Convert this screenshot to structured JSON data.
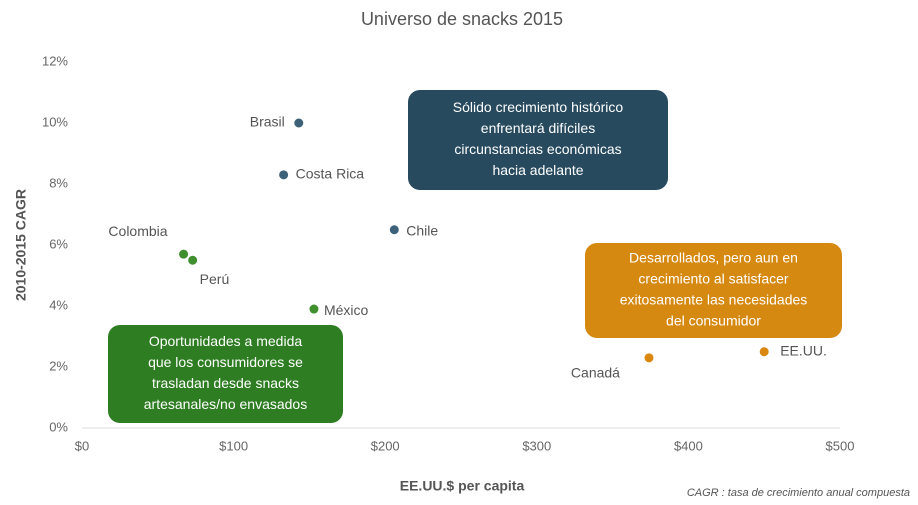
{
  "chart_data": {
    "type": "scatter",
    "title": "Universo de snacks  2015",
    "x_label": "EE.UU.$ per capita",
    "y_label": "2010-2015 CAGR",
    "footnote": "CAGR : tasa de crecimiento anual compuesta",
    "xlim": [
      0,
      500
    ],
    "ylim": [
      0,
      12
    ],
    "xticks": [
      {
        "value": 0,
        "label": "$0"
      },
      {
        "value": 100,
        "label": "$100"
      },
      {
        "value": 200,
        "label": "$200"
      },
      {
        "value": 300,
        "label": "$300"
      },
      {
        "value": 400,
        "label": "$400"
      },
      {
        "value": 500,
        "label": "$500"
      }
    ],
    "yticks": [
      {
        "value": 0,
        "label": "0%"
      },
      {
        "value": 2,
        "label": "2%"
      },
      {
        "value": 4,
        "label": "4%"
      },
      {
        "value": 6,
        "label": "6%"
      },
      {
        "value": 8,
        "label": "8%"
      },
      {
        "value": 10,
        "label": "10%"
      },
      {
        "value": 12,
        "label": "12%"
      }
    ],
    "points": [
      {
        "label": "Brasil",
        "x": 143,
        "y": 10.0,
        "color": "#3d6178"
      },
      {
        "label": "Costa Rica",
        "x": 133,
        "y": 8.3,
        "color": "#3d6178"
      },
      {
        "label": "Chile",
        "x": 206,
        "y": 6.5,
        "color": "#3d6178"
      },
      {
        "label": "Colombia",
        "x": 67,
        "y": 5.7,
        "color": "#3f8f2f"
      },
      {
        "label": "Perú",
        "x": 73,
        "y": 5.5,
        "color": "#3f8f2f"
      },
      {
        "label": "México",
        "x": 153,
        "y": 3.9,
        "color": "#3f8f2f"
      },
      {
        "label": "Canadá",
        "x": 374,
        "y": 2.3,
        "color": "#d9870f"
      },
      {
        "label": "EE.UU.",
        "x": 450,
        "y": 2.5,
        "color": "#d9870f"
      }
    ],
    "annotations": [
      {
        "lines": [
          "Sólido crecimiento histórico",
          "enfrentará difíciles",
          "circunstancias económicas",
          "hacia adelante"
        ],
        "color": "#274a5e"
      },
      {
        "lines": [
          "Desarrollados, pero aun en",
          "crecimiento al satisfacer",
          "exitosamente las necesidades",
          "del consumidor"
        ],
        "color": "#d68910"
      },
      {
        "lines": [
          "Oportunidades a medida",
          "que los consumidores se",
          "trasladan desde snacks",
          "artesanales/no envasados"
        ],
        "color": "#2e7d22"
      }
    ]
  }
}
